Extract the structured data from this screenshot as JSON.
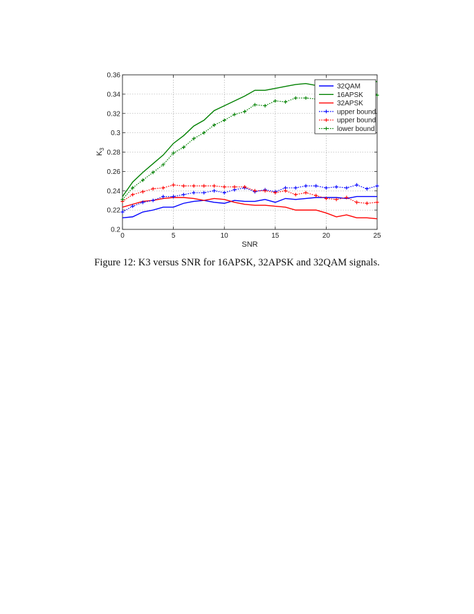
{
  "caption": "Figure 12: K3 versus SNR for 16APSK, 32APSK and 32QAM signals.",
  "chart_data": {
    "type": "line",
    "xlabel": "SNR",
    "ylabel": "K",
    "ylabel_sub": "3",
    "xlim": [
      0,
      25
    ],
    "ylim": [
      0.2,
      0.36
    ],
    "xticks": [
      "0",
      "5",
      "10",
      "15",
      "20",
      "25"
    ],
    "yticks": [
      "0.2",
      "0.22",
      "0.24",
      "0.26",
      "0.28",
      "0.3",
      "0.32",
      "0.34",
      "0.36"
    ],
    "grid": true,
    "legend_position": "top-right",
    "x": [
      0,
      1,
      2,
      3,
      4,
      5,
      6,
      7,
      8,
      9,
      10,
      11,
      12,
      13,
      14,
      15,
      16,
      17,
      18,
      19,
      20,
      21,
      22,
      23,
      24,
      25
    ],
    "series": [
      {
        "name": "32QAM",
        "color": "#0000ff",
        "style": "solid",
        "marker": "none",
        "values": [
          0.212,
          0.213,
          0.218,
          0.22,
          0.223,
          0.223,
          0.227,
          0.229,
          0.23,
          0.228,
          0.227,
          0.23,
          0.229,
          0.229,
          0.231,
          0.228,
          0.232,
          0.231,
          0.232,
          0.233,
          0.233,
          0.233,
          0.232,
          0.234,
          0.234,
          0.234
        ]
      },
      {
        "name": "16APSK",
        "color": "#008000",
        "style": "solid",
        "marker": "none",
        "values": [
          0.234,
          0.249,
          0.259,
          0.268,
          0.277,
          0.289,
          0.297,
          0.307,
          0.313,
          0.323,
          0.328,
          0.333,
          0.338,
          0.344,
          0.344,
          0.346,
          0.348,
          0.35,
          0.351,
          0.349,
          0.352,
          0.352,
          0.353,
          0.354,
          0.354,
          0.353
        ]
      },
      {
        "name": "32APSK",
        "color": "#ff0000",
        "style": "solid",
        "marker": "none",
        "values": [
          0.223,
          0.226,
          0.229,
          0.23,
          0.232,
          0.233,
          0.233,
          0.232,
          0.23,
          0.232,
          0.231,
          0.228,
          0.226,
          0.225,
          0.225,
          0.224,
          0.223,
          0.22,
          0.22,
          0.22,
          0.217,
          0.213,
          0.215,
          0.212,
          0.212,
          0.211
        ]
      },
      {
        "name": "upper bound",
        "color": "#0000ff",
        "style": "dotted",
        "marker": "plus",
        "values": [
          0.218,
          0.224,
          0.228,
          0.23,
          0.234,
          0.234,
          0.236,
          0.238,
          0.238,
          0.24,
          0.238,
          0.241,
          0.243,
          0.239,
          0.241,
          0.239,
          0.243,
          0.243,
          0.245,
          0.245,
          0.243,
          0.244,
          0.243,
          0.246,
          0.242,
          0.245
        ]
      },
      {
        "name": "upper bound",
        "color": "#ff0000",
        "style": "dotted",
        "marker": "plus",
        "values": [
          0.229,
          0.236,
          0.239,
          0.242,
          0.243,
          0.246,
          0.245,
          0.245,
          0.245,
          0.245,
          0.244,
          0.244,
          0.244,
          0.24,
          0.24,
          0.238,
          0.24,
          0.236,
          0.238,
          0.235,
          0.232,
          0.231,
          0.233,
          0.228,
          0.227,
          0.228
        ]
      },
      {
        "name": "lower bound",
        "color": "#008000",
        "style": "dotted",
        "marker": "plus",
        "values": [
          0.231,
          0.243,
          0.251,
          0.259,
          0.267,
          0.279,
          0.285,
          0.294,
          0.3,
          0.308,
          0.313,
          0.319,
          0.322,
          0.329,
          0.328,
          0.333,
          0.332,
          0.336,
          0.336,
          0.335,
          0.336,
          0.337,
          0.337,
          0.338,
          0.338,
          0.339
        ]
      }
    ]
  }
}
